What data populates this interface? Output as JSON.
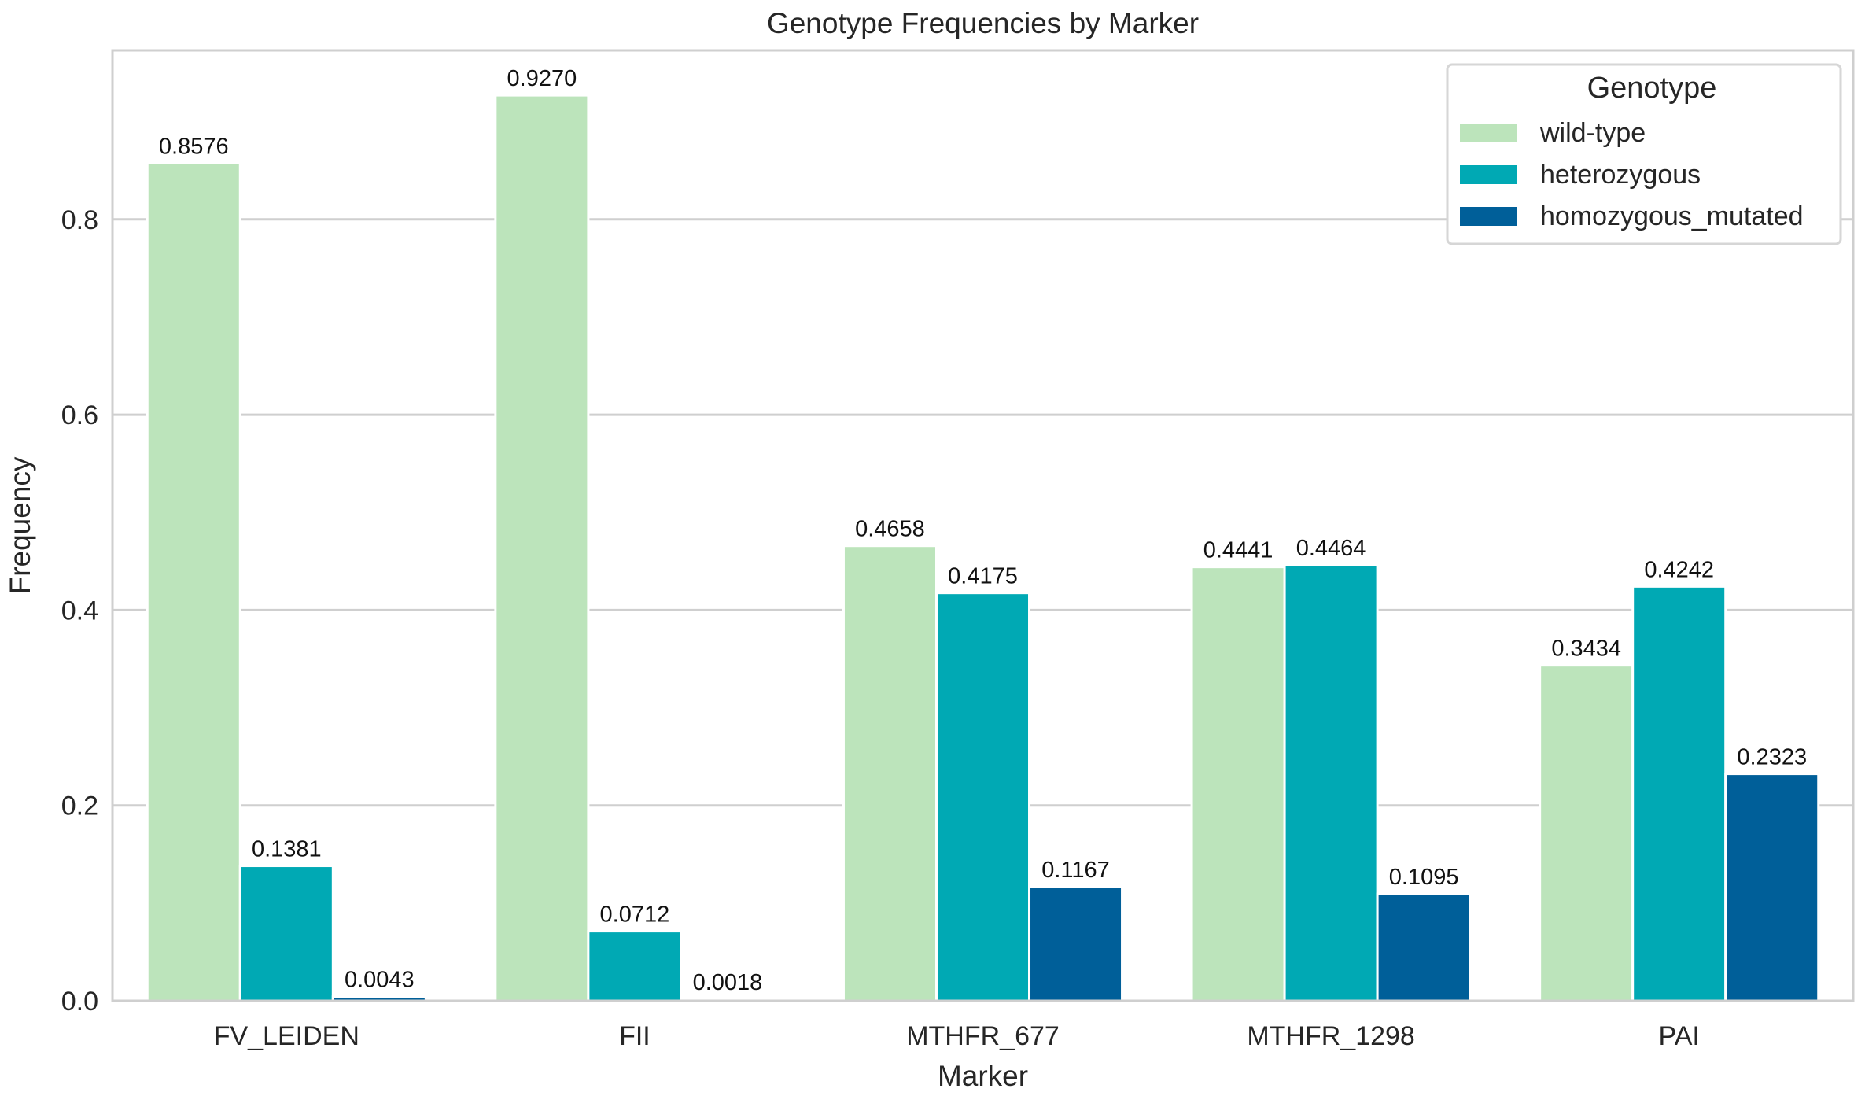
{
  "chart_data": {
    "type": "bar",
    "title": "Genotype Frequencies by Marker",
    "xlabel": "Marker",
    "ylabel": "Frequency",
    "ylim": [
      0,
      0.973
    ],
    "yticks": [
      0.0,
      0.2,
      0.4,
      0.6,
      0.8
    ],
    "ytick_labels": [
      "0.0",
      "0.2",
      "0.4",
      "0.6",
      "0.8"
    ],
    "grid": true,
    "categories": [
      "FV_LEIDEN",
      "FII",
      "MTHFR_677",
      "MTHFR_1298",
      "PAI"
    ],
    "series": [
      {
        "name": "wild-type",
        "color": "#bce4bb",
        "values": [
          0.8576,
          0.927,
          0.4658,
          0.4441,
          0.3434
        ],
        "labels": [
          "0.8576",
          "0.9270",
          "0.4658",
          "0.4441",
          "0.3434"
        ]
      },
      {
        "name": "heterozygous",
        "color": "#00a9b4",
        "values": [
          0.1381,
          0.0712,
          0.4175,
          0.4464,
          0.4242
        ],
        "labels": [
          "0.1381",
          "0.0712",
          "0.4175",
          "0.4464",
          "0.4242"
        ]
      },
      {
        "name": "homozygous_mutated",
        "color": "#005f99",
        "values": [
          0.0043,
          0.0018,
          0.1167,
          0.1095,
          0.2323
        ],
        "labels": [
          "0.0043",
          "0.0018",
          "0.1167",
          "0.1095",
          "0.2323"
        ]
      }
    ],
    "legend": {
      "title": "Genotype",
      "placement": "top-right"
    }
  }
}
